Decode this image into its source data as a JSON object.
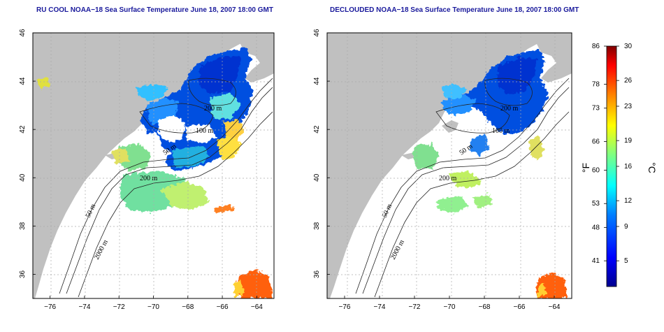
{
  "maps": [
    {
      "id": "left",
      "title": "RU COOL NOAA−18 Sea Surface Temperature June 18, 2007 18:00 GMT",
      "contour_labels": [
        "200 m",
        "100 m",
        "50 m",
        "200 m",
        "50 m",
        "2000 m"
      ]
    },
    {
      "id": "right",
      "title": "DECLOUDED NOAA−18 Sea Surface Temperature June 18, 2007 18:00 GMT",
      "contour_labels": [
        "200 m",
        "100 m",
        "50 m",
        "200 m",
        "50 m",
        "2000 m"
      ]
    }
  ],
  "axes": {
    "lon_ticks": [
      "−76",
      "−74",
      "−72",
      "−70",
      "−68",
      "−66",
      "−64"
    ],
    "lat_ticks": [
      "36",
      "38",
      "40",
      "42",
      "44",
      "46"
    ],
    "lon_range": [
      -77,
      -63
    ],
    "lat_range": [
      35,
      46
    ]
  },
  "colorbar": {
    "fahrenheit_ticks": [
      "86",
      "78",
      "73",
      "66",
      "60",
      "53",
      "48",
      "41"
    ],
    "celsius_ticks": [
      "30",
      "26",
      "23",
      "19",
      "16",
      "12",
      "9",
      "5"
    ],
    "unit_f": "°F",
    "unit_c": "°C",
    "colors": [
      "#00008f",
      "#0000ff",
      "#0080ff",
      "#00ffff",
      "#80ff80",
      "#ffff00",
      "#ff8000",
      "#ff0000",
      "#800000"
    ]
  },
  "colors": {
    "land": "#c0c0c0",
    "ocean": "#ffffff",
    "grid": "#aaaaaa"
  }
}
